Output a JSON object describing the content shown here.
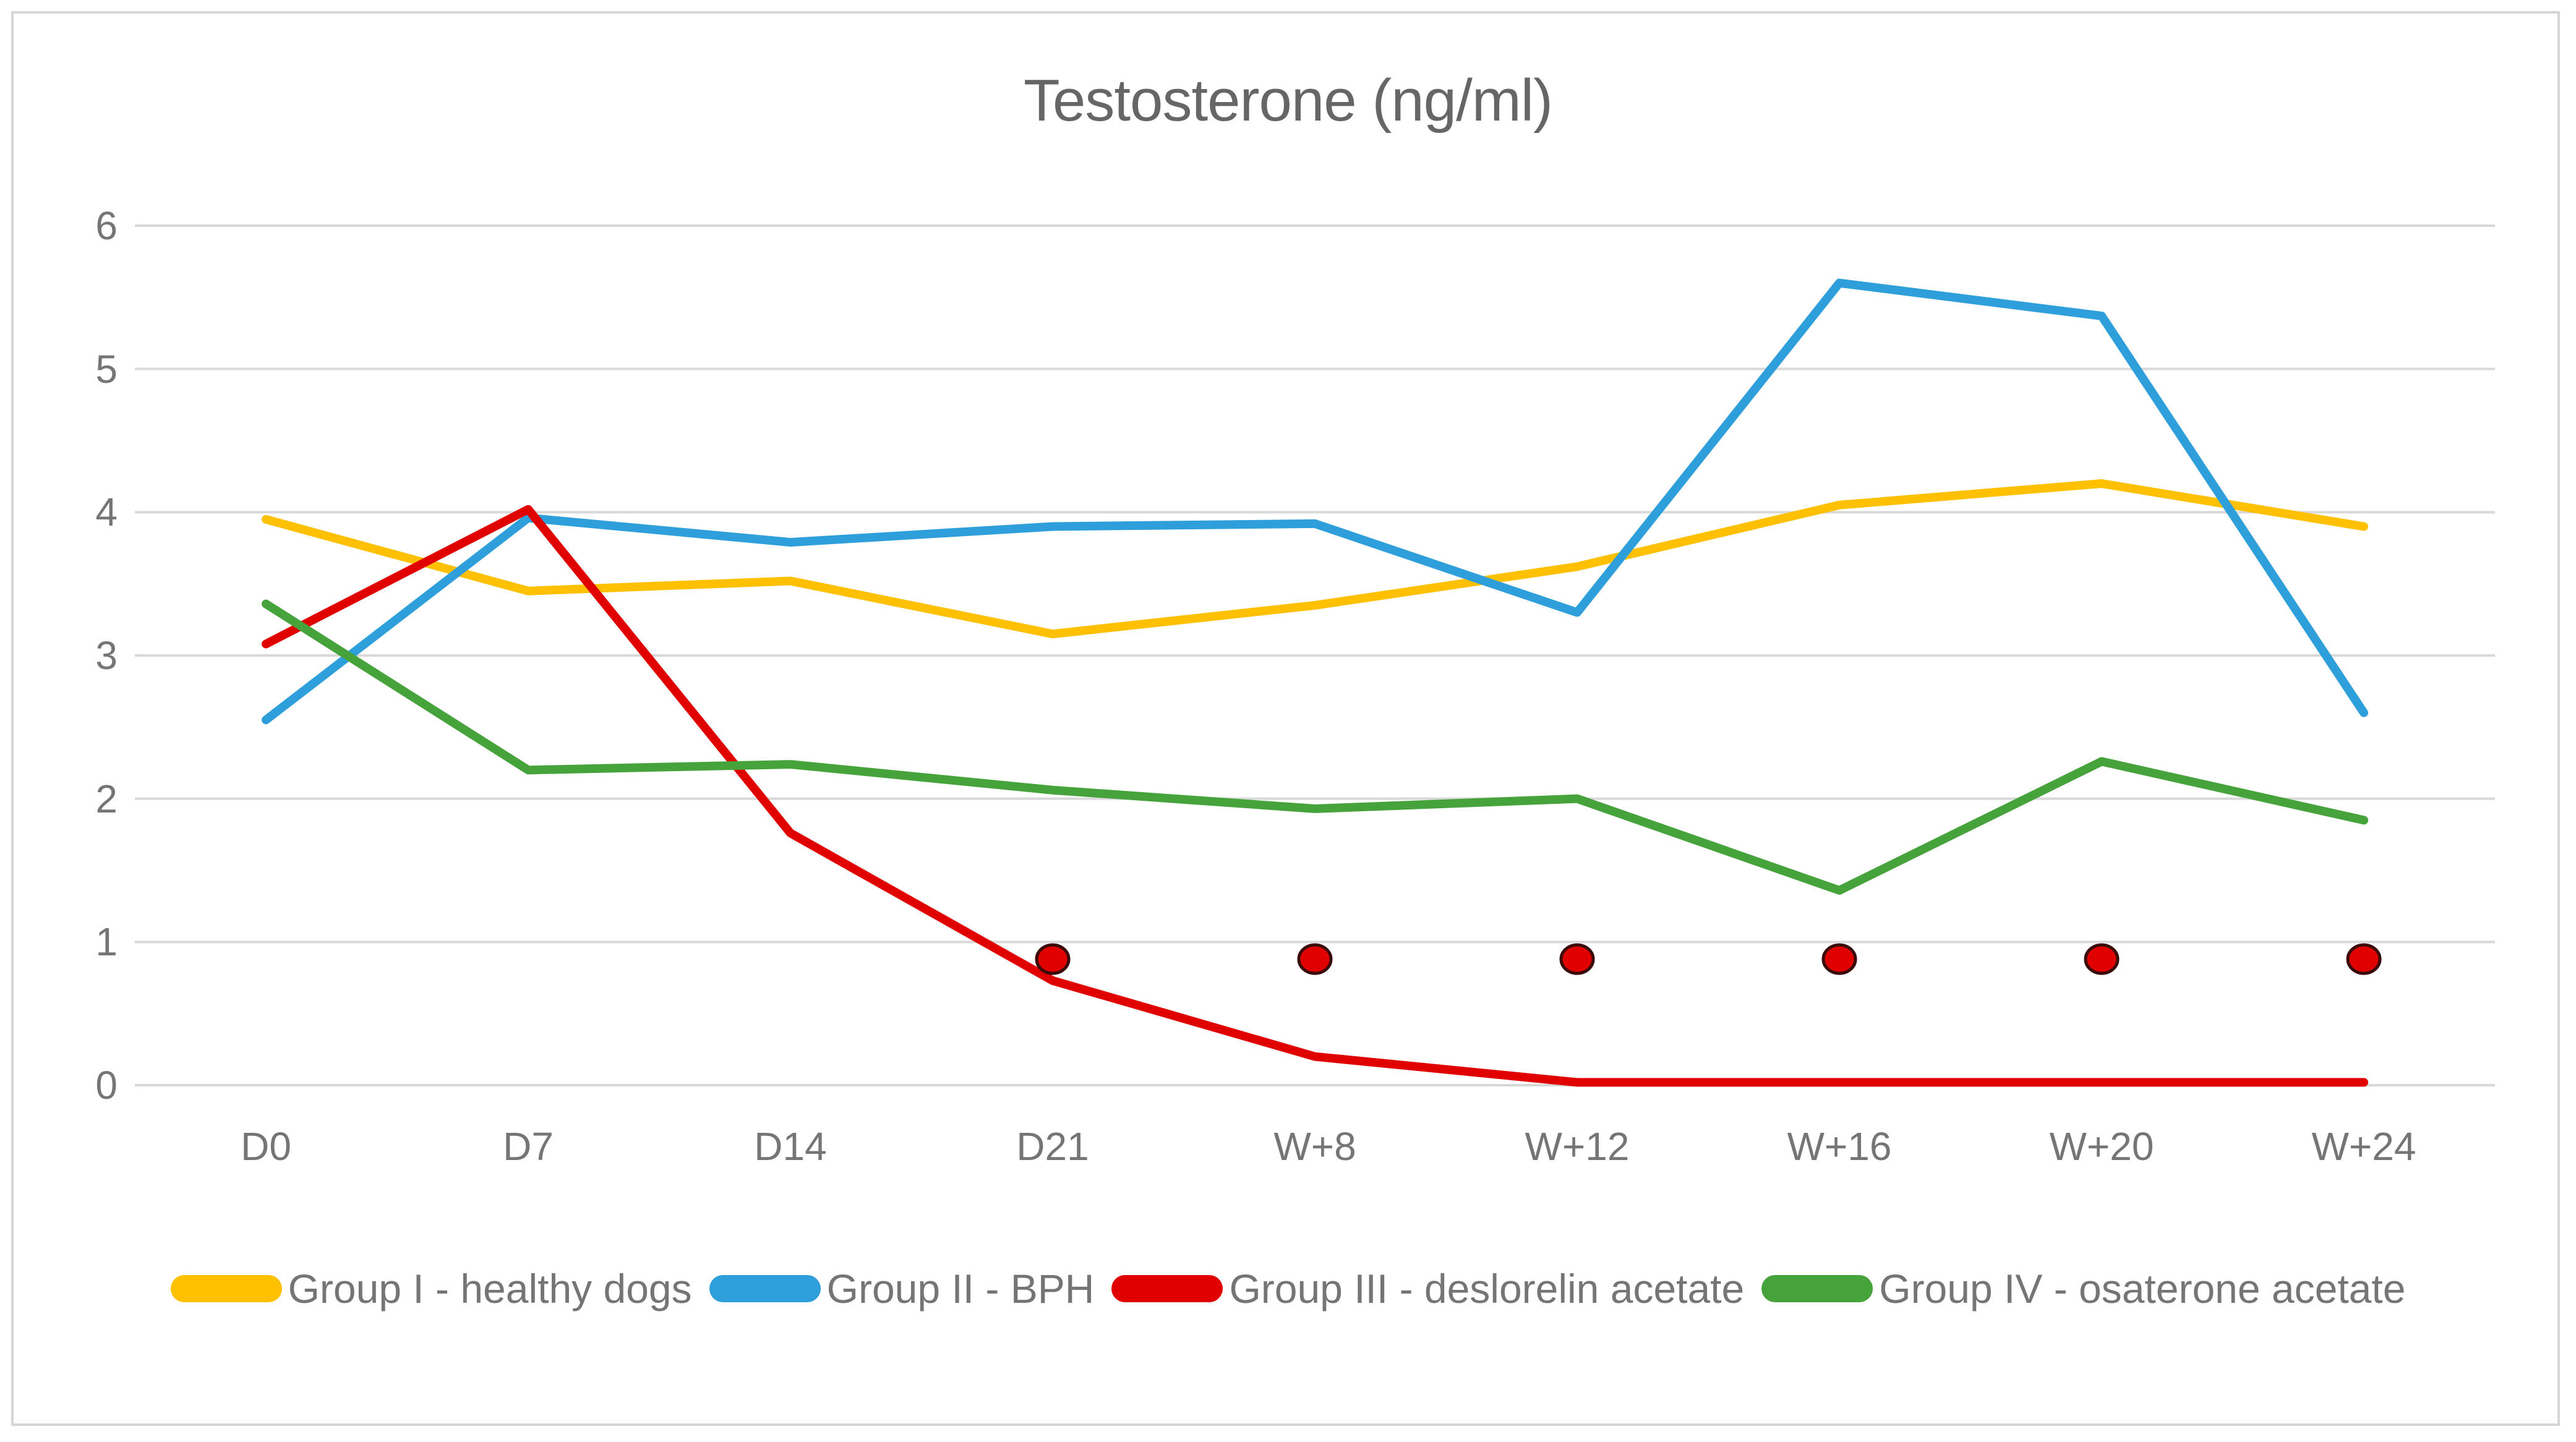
{
  "chart_data": {
    "type": "line",
    "title": "Testosterone (ng/ml)",
    "categories": [
      "D0",
      "D7",
      "D14",
      "D21",
      "W+8",
      "W+12",
      "W+16",
      "W+20",
      "W+24"
    ],
    "series": [
      {
        "name": "Group I - healthy dogs",
        "color": "#FFC000",
        "values": [
          3.95,
          3.45,
          3.52,
          3.15,
          3.35,
          3.62,
          4.05,
          4.2,
          3.9
        ]
      },
      {
        "name": "Group II - BPH",
        "color": "#2E9FDA",
        "values": [
          2.55,
          3.96,
          3.79,
          3.9,
          3.92,
          3.3,
          5.6,
          5.37,
          2.6
        ]
      },
      {
        "name": "Group III - deslorelin acetate",
        "color": "#E10000",
        "values": [
          3.08,
          4.02,
          1.76,
          0.73,
          0.2,
          0.02,
          0.02,
          0.02,
          0.02
        ]
      },
      {
        "name": "Group IV - osaterone acetate",
        "color": "#46A33C",
        "values": [
          3.36,
          2.2,
          2.24,
          2.06,
          1.93,
          2.0,
          1.36,
          2.26,
          1.85
        ]
      }
    ],
    "significance_markers": {
      "categories": [
        "D21",
        "W+8",
        "W+12",
        "W+16",
        "W+20",
        "W+24"
      ],
      "value": 0.88,
      "fill": "#E00000",
      "outline": "#3B0B0B"
    },
    "yticks": [
      0,
      1,
      2,
      3,
      4,
      5,
      6
    ],
    "ylim": [
      0,
      6
    ],
    "grid": {
      "visible": true,
      "color": "#D9D9D9"
    },
    "legend_position": "bottom"
  }
}
